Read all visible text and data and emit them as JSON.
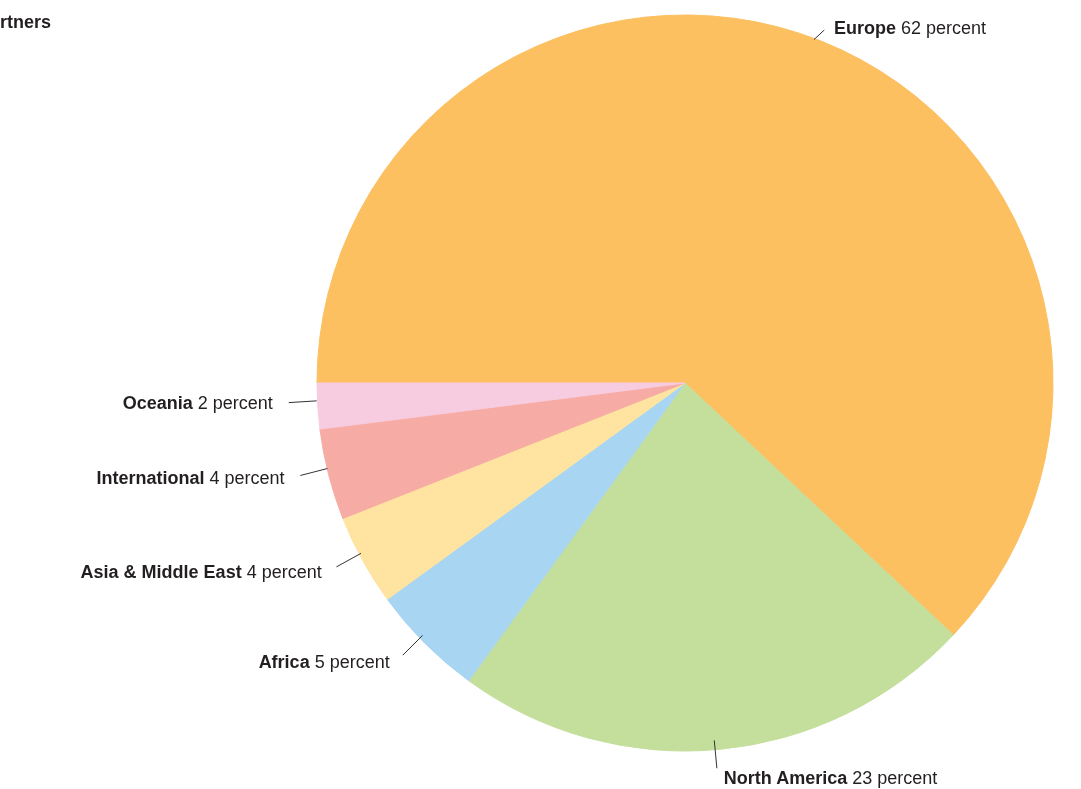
{
  "chart_data": {
    "type": "pie",
    "title": "rtners",
    "categories": [
      "Europe",
      "North America",
      "Africa",
      "Asia & Middle East",
      "International",
      "Oceania"
    ],
    "values": [
      62,
      23,
      5,
      4,
      4,
      2
    ],
    "colors": [
      "#fcc060",
      "#c4df9c",
      "#a8d6f2",
      "#fee4a0",
      "#f6aca4",
      "#f8cce0"
    ],
    "value_labels": [
      "62 percent",
      "23 percent",
      "5 percent",
      "4 percent",
      "4 percent",
      "2 percent"
    ]
  }
}
